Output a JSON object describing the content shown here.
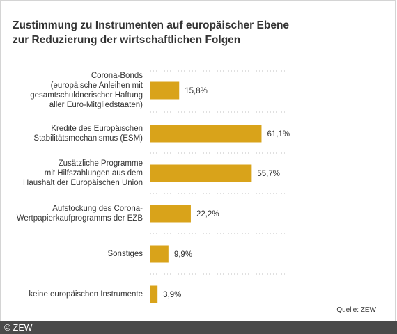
{
  "title_lines": [
    "Zustimmung zu Instrumenten auf europäischer Ebene",
    "zur Reduzierung der wirtschaftlichen Folgen"
  ],
  "source": "Quelle: ZEW",
  "copyright": "© ZEW",
  "chart_data": {
    "type": "bar",
    "orientation": "horizontal",
    "title": "Zustimmung zu Instrumenten auf europäischer Ebene zur Reduzierung der wirtschaftlichen Folgen",
    "categories": [
      [
        "Corona-Bonds",
        "(europäische Anleihen mit",
        "gesamtschuldnerischer Haftung",
        "aller Euro-Mitgliedstaaten)"
      ],
      [
        "Kredite des Europäischen",
        "Stabilitätsmechanismus (ESM)"
      ],
      [
        "Zusätzliche Programme",
        "mit Hilfszahlungen aus dem",
        "Haushalt der Europäischen Union"
      ],
      [
        "Aufstockung des Corona-",
        "Wertpapierkaufprogramms der EZB"
      ],
      [
        "Sonstiges"
      ],
      [
        "keine europäischen Instrumente"
      ]
    ],
    "values": [
      15.8,
      61.1,
      55.7,
      22.2,
      9.9,
      3.9
    ],
    "value_labels": [
      "15,8%",
      "61,1%",
      "55,7%",
      "22,2%",
      "9,9%",
      "3,9%"
    ],
    "unit": "%",
    "xlim": [
      0,
      100
    ],
    "grid": "dotted horizontal separators",
    "bar_color": "#d9a31a"
  }
}
